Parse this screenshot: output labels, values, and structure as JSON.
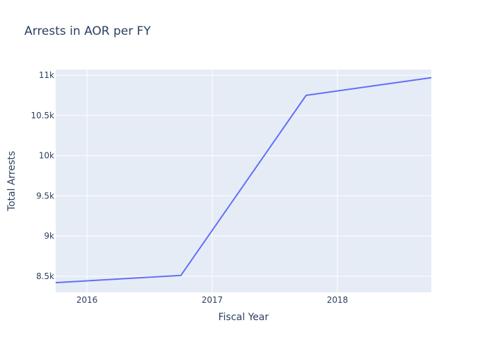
{
  "chart_data": {
    "type": "line",
    "title": "Arrests in AOR per FY",
    "xlabel": "Fiscal Year",
    "ylabel": "Total Arrests",
    "xlim": [
      2015.75,
      2018.75
    ],
    "ylim": [
      8300,
      11070
    ],
    "grid": true,
    "x_ticks": [
      2016,
      2017,
      2018
    ],
    "x_tick_labels": [
      "2016",
      "2017",
      "2018"
    ],
    "y_ticks": [
      8500,
      9000,
      9500,
      10000,
      10500,
      11000
    ],
    "y_tick_labels": [
      "8.5k",
      "9k",
      "9.5k",
      "10k",
      "10.5k",
      "11k"
    ],
    "series": [
      {
        "color": "#636efa",
        "x": [
          2015.75,
          2016.75,
          2017.75,
          2018.75
        ],
        "y": [
          8420,
          8510,
          10750,
          10970
        ]
      }
    ],
    "colors": {
      "plot_background": "#e5ecf6",
      "grid": "#ffffff",
      "text": "#2a3f5f"
    }
  }
}
